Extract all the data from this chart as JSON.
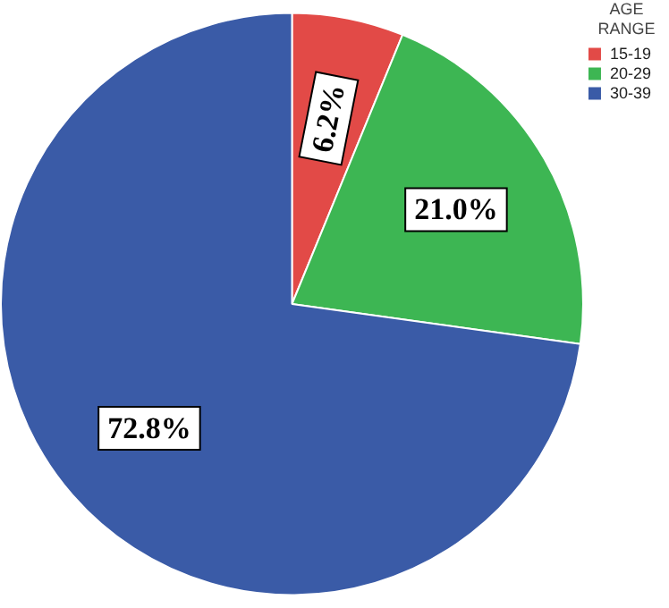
{
  "chart_data": {
    "type": "pie",
    "legend_title": "AGE RANGE",
    "legend": "top right",
    "categories": [
      "15-19",
      "20-29",
      "30-39"
    ],
    "values": [
      6.2,
      21.0,
      72.8
    ],
    "colors": [
      "#e24a47",
      "#3db653",
      "#3a5ba7"
    ],
    "value_labels": [
      "6.2%",
      "21.0%",
      "72.8%"
    ]
  }
}
